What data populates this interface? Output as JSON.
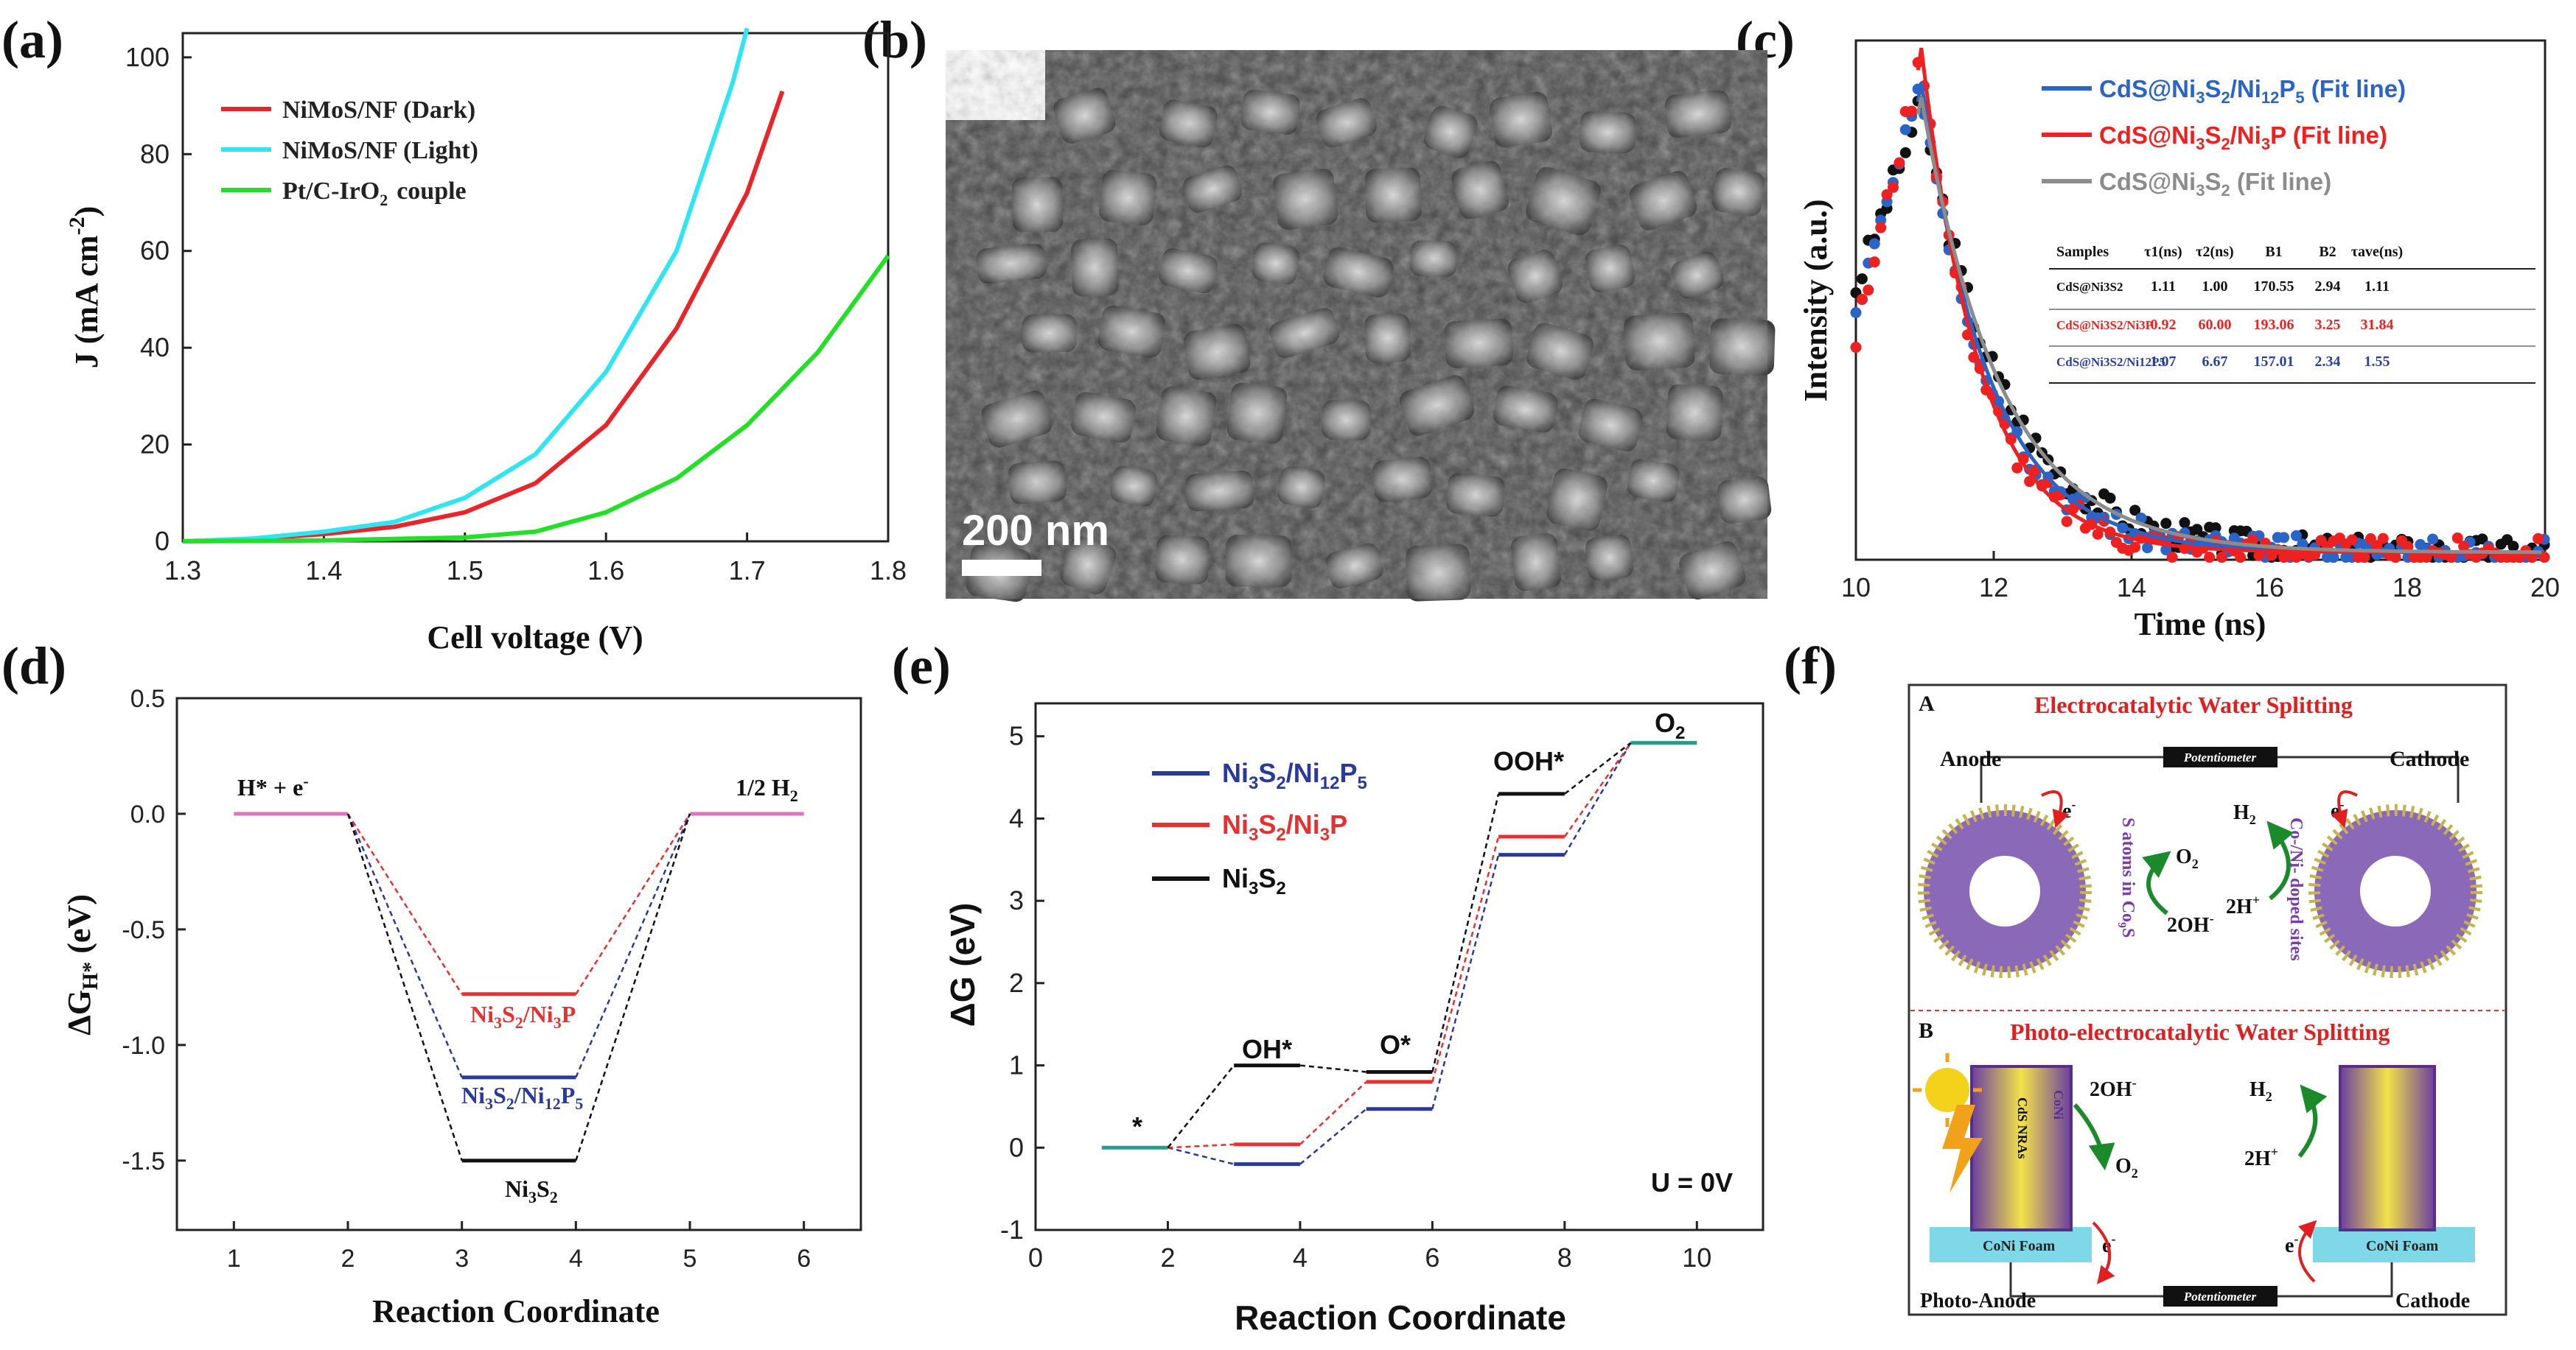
{
  "figure": {
    "panel_labels": [
      "(a)",
      "(b)",
      "(c)",
      "(d)",
      "(e)",
      "(f)"
    ]
  },
  "chart_data": [
    {
      "panel": "(a)",
      "type": "line",
      "title": "",
      "xlabel": "Cell voltage (V)",
      "ylabel": "J (mA cm",
      "ylabel_sup": "-2",
      "ylabel_close": ")",
      "xlim": [
        1.3,
        1.8
      ],
      "ylim": [
        0,
        105
      ],
      "xticks": [
        1.3,
        1.4,
        1.5,
        1.6,
        1.7,
        1.8
      ],
      "xtick_labels": [
        "1.3",
        "1.4",
        "1.5",
        "1.6",
        "1.7",
        "1.8"
      ],
      "yticks": [
        0,
        20,
        40,
        60,
        80,
        100
      ],
      "ytick_labels": [
        "0",
        "20",
        "40",
        "60",
        "80",
        "100"
      ],
      "legend": [
        "NiMoS/NF (Dark)",
        "NiMoS/NF (Light)",
        "Pt/C-IrO",
        "couple"
      ],
      "series": [
        {
          "name": "NiMoS/NF (Dark)",
          "color": "#e8262a",
          "x": [
            1.3,
            1.35,
            1.4,
            1.45,
            1.5,
            1.55,
            1.6,
            1.65,
            1.7,
            1.725
          ],
          "y": [
            0,
            0.5,
            1.5,
            3,
            6,
            12,
            24,
            44,
            72,
            93
          ]
        },
        {
          "name": "NiMoS/NF (Light)",
          "color": "#2ee6f2",
          "x": [
            1.3,
            1.35,
            1.4,
            1.45,
            1.5,
            1.55,
            1.6,
            1.65,
            1.69,
            1.7
          ],
          "y": [
            0,
            0.6,
            2,
            4,
            9,
            18,
            35,
            60,
            95,
            106
          ]
        },
        {
          "name": "Pt/C-IrO2 couple",
          "color": "#22e025",
          "x": [
            1.3,
            1.4,
            1.5,
            1.55,
            1.6,
            1.65,
            1.7,
            1.75,
            1.8
          ],
          "y": [
            0,
            0.2,
            0.8,
            2,
            6,
            13,
            24,
            39,
            59
          ]
        }
      ]
    },
    {
      "panel": "(c)",
      "type": "scatter",
      "xlabel": "Time (ns)",
      "ylabel": "Intensity (a.u.)",
      "xlim": [
        10,
        20
      ],
      "ylim": [
        0,
        1.05
      ],
      "xticks": [
        10,
        12,
        14,
        16,
        18,
        20
      ],
      "xtick_labels": [
        "10",
        "12",
        "14",
        "16",
        "18",
        "20"
      ],
      "legend": [
        "CdS@Ni3S2/Ni12P5 (Fit line)",
        "CdS@Ni3S2/Ni3P (Fit line)",
        "CdS@Ni3S2 (Fit line)"
      ],
      "series": [
        {
          "name": "CdS@Ni3S2/Ni12P5",
          "marker_color": "#2b64c8",
          "fit_color": "#2b64c8",
          "tau": 1.0,
          "peak": 0.95,
          "plateau": 0.5
        },
        {
          "name": "CdS@Ni3S2/Ni3P",
          "marker_color": "#ee2020",
          "fit_color": "#ee2020",
          "tau": 0.85,
          "peak": 1.02,
          "plateau": 0.45
        },
        {
          "name": "CdS@Ni3S2",
          "marker_color": "#111111",
          "fit_color": "#8c8c8c",
          "tau": 1.15,
          "peak": 0.92,
          "plateau": 0.55
        }
      ],
      "table": {
        "headers": [
          "Samples",
          "τ1(ns)",
          "τ2(ns)",
          "B1",
          "B2",
          "τave(ns)"
        ],
        "rows": [
          {
            "sample": "CdS@Ni3S2",
            "color": "#111111",
            "cells": [
              "1.11",
              "1.00",
              "170.55",
              "2.94",
              "1.11"
            ]
          },
          {
            "sample": "CdS@Ni3S2/Ni3P",
            "color": "#ee2020",
            "cells": [
              "0.92",
              "60.00",
              "193.06",
              "3.25",
              "31.84"
            ]
          },
          {
            "sample": "CdS@Ni3S2/Ni12P5",
            "color": "#2b3fa0",
            "cells": [
              "1.07",
              "6.67",
              "157.01",
              "2.34",
              "1.55"
            ]
          }
        ]
      }
    },
    {
      "panel": "(d)",
      "type": "line",
      "xlabel": "Reaction Coordinate",
      "ylabel": "ΔG",
      "ylabel_sub": "H*",
      "ylabel_unit": " (eV)",
      "xlim": [
        0.5,
        6.5
      ],
      "ylim": [
        -1.8,
        0.5
      ],
      "xticks": [
        1,
        2,
        3,
        4,
        5,
        6
      ],
      "xtick_labels": [
        "1",
        "2",
        "3",
        "4",
        "5",
        "6"
      ],
      "yticks": [
        0.5,
        0.0,
        -0.5,
        -1.0,
        -1.5
      ],
      "ytick_labels": [
        "0.5",
        "0.0",
        "-0.5",
        "-1.0",
        "-1.5"
      ],
      "annotations": [
        "H* + e",
        "1/2 H"
      ],
      "series": [
        {
          "name": "Ni3S2/Ni3P",
          "color": "#e83030",
          "value": -0.78
        },
        {
          "name": "Ni3S2/Ni12P5",
          "color": "#2a3a9c",
          "value": -1.14
        },
        {
          "name": "Ni3S2",
          "color": "#111111",
          "value": -1.5
        }
      ],
      "baseline_color": "#e070c0"
    },
    {
      "panel": "(e)",
      "type": "line",
      "xlabel": "Reaction Coordinate",
      "ylabel": "ΔG (eV)",
      "xlim": [
        0,
        11
      ],
      "ylim": [
        -1,
        5.4
      ],
      "xticks": [
        0,
        2,
        4,
        6,
        8,
        10
      ],
      "xtick_labels": [
        "0",
        "2",
        "4",
        "6",
        "8",
        "10"
      ],
      "yticks": [
        -1,
        0,
        1,
        2,
        3,
        4,
        5
      ],
      "ytick_labels": [
        "-1",
        "0",
        "1",
        "2",
        "3",
        "4",
        "5"
      ],
      "annotations": [
        "*",
        "OH*",
        "O*",
        "OOH*",
        "O",
        "U = 0V"
      ],
      "legend": [
        "Ni3S2/Ni12P5",
        "Ni3S2/Ni3P",
        "Ni3S2"
      ],
      "series": [
        {
          "name": "Ni3S2/Ni12P5",
          "color": "#2a3a9c",
          "levels": [
            0,
            -0.2,
            0.47,
            3.56,
            4.92
          ]
        },
        {
          "name": "Ni3S2/Ni3P",
          "color": "#e83030",
          "levels": [
            0,
            0.04,
            0.8,
            3.78,
            4.92
          ]
        },
        {
          "name": "Ni3S2",
          "color": "#111111",
          "levels": [
            0,
            1.0,
            0.92,
            4.3,
            4.92
          ]
        }
      ],
      "shared_color": "#2a9a8c"
    }
  ],
  "sem_image": {
    "scale_bar": "200 nm"
  },
  "schematic": {
    "section_a_letter": "A",
    "section_a_title": "Electrocatalytic Water Splitting",
    "section_b_letter": "B",
    "section_b_title": "Photo-electrocatalytic Water Splitting",
    "potentiometer": "Potentiometer",
    "anode": "Anode",
    "cathode": "Cathode",
    "photo_anode": "Photo-Anode",
    "cathode_b": "Cathode",
    "electron": "e",
    "o2": "O",
    "h2": "H",
    "oh": "2OH",
    "hplus": "2H",
    "s_atoms": "S atoms in Co",
    "s_atoms_sub": "9",
    "s_atoms_end": "S",
    "doped": "Co-/Ni- doped sites",
    "coni_foam": "CoNi Foam",
    "cds_nras": "CdS NRAs",
    "cone": "CoNi"
  }
}
